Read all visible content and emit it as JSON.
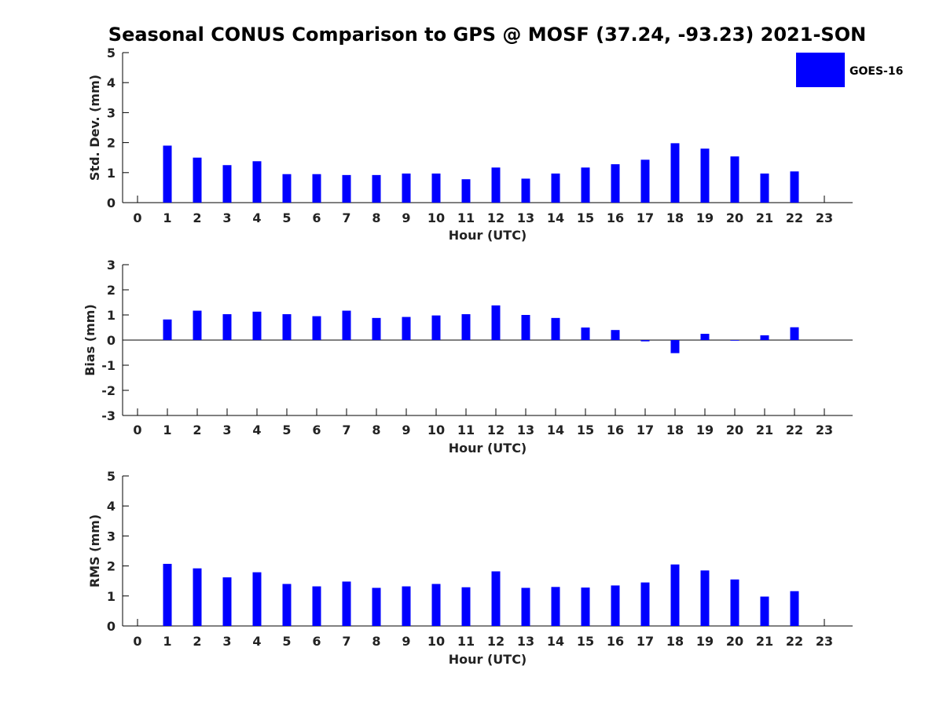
{
  "title": "Seasonal CONUS Comparison to GPS @ MOSF (37.24, -93.23) 2021-SON",
  "legend": {
    "label": "GOES-16",
    "color": "#0000ff",
    "placement": "top-right"
  },
  "chart_data": [
    {
      "type": "bar",
      "name": "std-dev",
      "ylabel": "Std. Dev. (mm)",
      "xlabel": "Hour (UTC)",
      "ylim": [
        0,
        5
      ],
      "yticks": [
        0,
        1,
        2,
        3,
        4,
        5
      ],
      "categories": [
        "0",
        "1",
        "2",
        "3",
        "4",
        "5",
        "6",
        "7",
        "8",
        "9",
        "10",
        "11",
        "12",
        "13",
        "14",
        "15",
        "16",
        "17",
        "18",
        "19",
        "20",
        "21",
        "22",
        "23"
      ],
      "series": [
        {
          "name": "GOES-16",
          "values": [
            null,
            1.9,
            1.5,
            1.25,
            1.38,
            0.95,
            0.95,
            0.92,
            0.92,
            0.97,
            0.97,
            0.78,
            1.17,
            0.8,
            0.97,
            1.17,
            1.28,
            1.43,
            1.98,
            1.8,
            1.54,
            0.97,
            1.04,
            null
          ]
        }
      ],
      "zero_line": false
    },
    {
      "type": "bar",
      "name": "bias",
      "ylabel": "Bias (mm)",
      "xlabel": "Hour (UTC)",
      "ylim": [
        -3,
        3
      ],
      "yticks": [
        -3,
        -2,
        -1,
        0,
        1,
        2,
        3
      ],
      "categories": [
        "0",
        "1",
        "2",
        "3",
        "4",
        "5",
        "6",
        "7",
        "8",
        "9",
        "10",
        "11",
        "12",
        "13",
        "14",
        "15",
        "16",
        "17",
        "18",
        "19",
        "20",
        "21",
        "22",
        "23"
      ],
      "series": [
        {
          "name": "GOES-16",
          "values": [
            null,
            0.82,
            1.17,
            1.03,
            1.13,
            1.03,
            0.95,
            1.17,
            0.88,
            0.92,
            0.98,
            1.03,
            1.38,
            1.0,
            0.88,
            0.5,
            0.4,
            -0.05,
            -0.52,
            0.25,
            0.0,
            0.19,
            0.51,
            null
          ]
        }
      ],
      "zero_line": true
    },
    {
      "type": "bar",
      "name": "rms",
      "ylabel": "RMS (mm)",
      "xlabel": "Hour (UTC)",
      "ylim": [
        0,
        5
      ],
      "yticks": [
        0,
        1,
        2,
        3,
        4,
        5
      ],
      "categories": [
        "0",
        "1",
        "2",
        "3",
        "4",
        "5",
        "6",
        "7",
        "8",
        "9",
        "10",
        "11",
        "12",
        "13",
        "14",
        "15",
        "16",
        "17",
        "18",
        "19",
        "20",
        "21",
        "22",
        "23"
      ],
      "series": [
        {
          "name": "GOES-16",
          "values": [
            null,
            2.07,
            1.92,
            1.62,
            1.79,
            1.4,
            1.32,
            1.48,
            1.27,
            1.32,
            1.4,
            1.29,
            1.82,
            1.27,
            1.3,
            1.28,
            1.35,
            1.45,
            2.05,
            1.85,
            1.55,
            0.98,
            1.16,
            null
          ]
        }
      ],
      "zero_line": false
    }
  ]
}
